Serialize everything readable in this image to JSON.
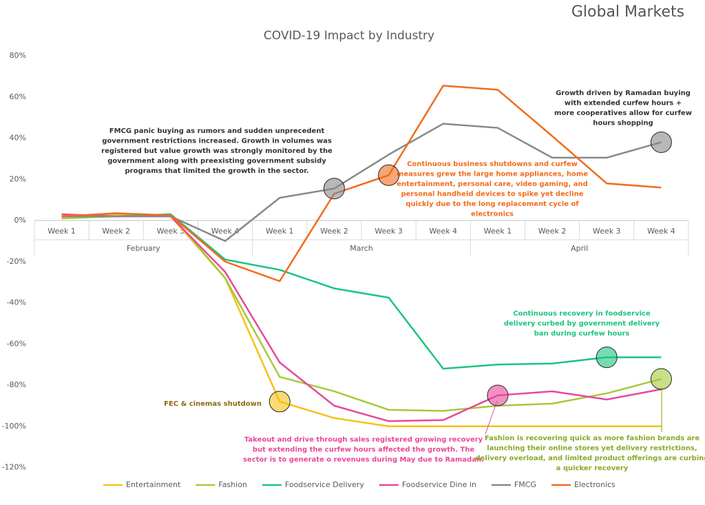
{
  "logo": "Global Markets",
  "chart_data": {
    "type": "line",
    "title": "COVID-19 Impact by Industry",
    "category_groups": [
      {
        "name": "February",
        "categories": [
          "Week 1",
          "Week 2",
          "Week 3",
          "Week 4"
        ]
      },
      {
        "name": "March",
        "categories": [
          "Week 1",
          "Week 2",
          "Week 3",
          "Week 4"
        ]
      },
      {
        "name": "April",
        "categories": [
          "Week 1",
          "Week 2",
          "Week 3",
          "Week 4"
        ]
      }
    ],
    "ylim": [
      -120,
      80
    ],
    "yticks": [
      {
        "value": -120,
        "label": "-120%"
      },
      {
        "value": -100,
        "label": "-100%"
      },
      {
        "value": -80,
        "label": "-80%"
      },
      {
        "value": -60,
        "label": "-60%"
      },
      {
        "value": -40,
        "label": "-40%"
      },
      {
        "value": -20,
        "label": "-20%"
      },
      {
        "value": 0,
        "label": "0%"
      },
      {
        "value": 20,
        "label": "20%"
      },
      {
        "value": 40,
        "label": "40%"
      },
      {
        "value": 60,
        "label": "60%"
      },
      {
        "value": 80,
        "label": "80%"
      }
    ],
    "series": [
      {
        "name": "Entertainment",
        "color": "#f5c118",
        "values": [
          2,
          3,
          2,
          -28,
          -88,
          -96,
          -100,
          -100,
          -100,
          -100,
          -100,
          -100
        ]
      },
      {
        "name": "Fashion",
        "color": "#a5c93a",
        "values": [
          1,
          2,
          3,
          -28,
          -76,
          -83,
          -92,
          -92.5,
          -90,
          -89,
          -84,
          -77
        ]
      },
      {
        "name": "Foodservice Delivery",
        "color": "#1bc47d",
        "values": [
          2,
          2,
          3,
          -19,
          -24,
          -33,
          -37.5,
          -72,
          -70,
          -69.5,
          -66.5,
          -66.5
        ]
      },
      {
        "name": "Foodservice Dine in",
        "color": "#e8489a",
        "values": [
          3,
          2,
          2,
          -25,
          -69,
          -90,
          -97.5,
          -97,
          -85,
          -83,
          -87,
          -82
        ]
      },
      {
        "name": "FMCG",
        "color": "#888888",
        "values": [
          2,
          2,
          2,
          -10,
          11,
          15.5,
          32,
          47,
          45,
          30.5,
          30.5,
          38
        ]
      },
      {
        "name": "Electronics",
        "color": "#f26b1d",
        "values": [
          2,
          3.5,
          2.5,
          -20,
          -29.5,
          13,
          22,
          65.5,
          63.5,
          41,
          18,
          16
        ]
      }
    ],
    "annotations": [
      {
        "lines": [
          "FMCG panic buying as rumors and sudden unprecedent",
          "government restrictions increased. Growth in volumes was",
          "registered but value growth was strongly monitored by the",
          "government along with preexisting government subsidy",
          "programs that limited the growth in the sector."
        ]
      },
      {
        "lines": [
          "Continuous business shutdowns and curfew",
          "measures grew the large home appliances, home",
          "entertainment, personal care, video gaming, and",
          "personal handheld devices to spike yet decline",
          "quickly due to the long replacement cycle of",
          "electronics"
        ]
      },
      {
        "lines": [
          "Growth driven by Ramadan buying",
          "with extended curfew hours +",
          "more cooperatives allow for curfew",
          "hours shopping"
        ]
      },
      {
        "lines": [
          "Continuous recovery in foodservice",
          "delivery curbed by government delivery",
          "ban during curfew hours"
        ]
      },
      {
        "lines": [
          "FEC & cinemas shutdown"
        ]
      },
      {
        "lines": [
          "Takeout and drive through sales registered growing recovery",
          "but extending the curfew hours affected the growth. The",
          "sector is to generate o revenues during May due to Ramadan."
        ]
      },
      {
        "lines": [
          "Fashion is recovering quick as more fashion brands are",
          "launching their online stores yet delivery restrictions,",
          "delivery overload, and limited product offerings are curbing",
          "a quicker recovery"
        ]
      }
    ]
  }
}
